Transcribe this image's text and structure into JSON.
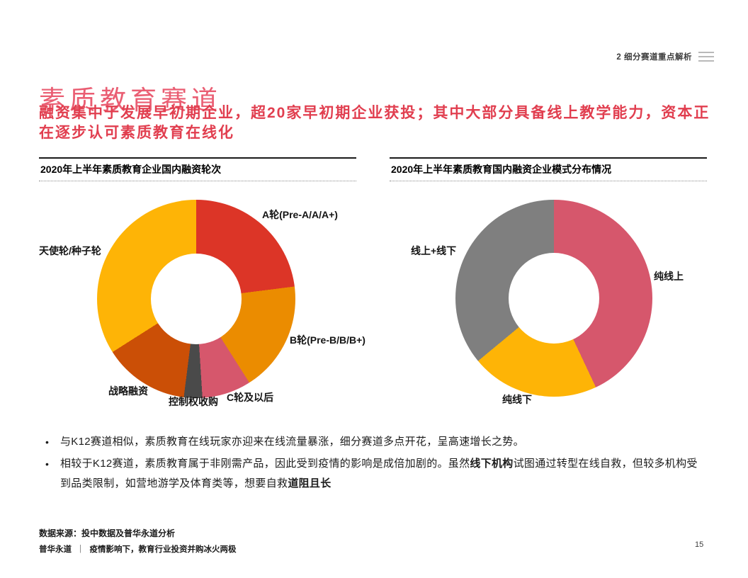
{
  "page": {
    "header_right": "2 细分赛道重点解析",
    "title": "素质教育赛道",
    "subtitle": "融资集中于发展早初期企业，超20家早初期企业获投；其中大部分具备线上教学能力，资本正在逐步认可素质教育在线化"
  },
  "theme": {
    "title_color": "#EA5E73",
    "subtitle_color": "#E13E4F",
    "rule_color": "#1a1a1a"
  },
  "chart_data": [
    {
      "type": "pie",
      "subtype": "donut",
      "title": "2020年上半年素质教育企业国内融资轮次",
      "categories": [
        "A轮(Pre-A/A/A+)",
        "B轮(Pre-B/B/B+)",
        "C轮及以后",
        "控制权收购",
        "战略融资",
        "天使轮/种子轮"
      ],
      "values": [
        23,
        18,
        8,
        3,
        14,
        34
      ],
      "colors": [
        "#DC3527",
        "#EB8C00",
        "#D6576C",
        "#4A4A4A",
        "#CB4F06",
        "#FEB406"
      ],
      "start_angle_deg": 0,
      "direction": "clockwise",
      "donut_hole_ratio": 0.46,
      "data_labels_shown": false,
      "values_estimated_from_angles": true
    },
    {
      "type": "pie",
      "subtype": "donut",
      "title": "2020年上半年素质教育国内融资企业模式分布情况",
      "categories": [
        "纯线上",
        "纯线下",
        "线上+线下"
      ],
      "values": [
        43,
        21,
        36
      ],
      "colors": [
        "#D6576C",
        "#FEB406",
        "#7F7F7F"
      ],
      "start_angle_deg": 0,
      "direction": "clockwise",
      "donut_hole_ratio": 0.46,
      "data_labels_shown": false,
      "values_estimated_from_angles": true
    }
  ],
  "bullets": [
    {
      "segments": [
        {
          "text": "与K12赛道相似，素质教育在线玩家亦迎来在线流量暴涨，细分赛道多点开花，呈高速增长之势。",
          "bold": false
        }
      ]
    },
    {
      "segments": [
        {
          "text": "相较于K12赛道，素质教育属于非刚需产品，因此受到疫情的影响是成倍加剧的。虽然",
          "bold": false
        },
        {
          "text": "线下机构",
          "bold": true
        },
        {
          "text": "试图通过转型在线自救，但较多机构受到品类限制，如营地游学及体育类等，想要自救",
          "bold": false
        },
        {
          "text": "道阻且长",
          "bold": true
        }
      ]
    }
  ],
  "footer": {
    "source": "数据来源：投中数据及普华永道分析",
    "brand": "普华永道",
    "separator": "｜",
    "doc_title": "疫情影响下，教育行业投资并购冰火两极",
    "page_number": "15"
  }
}
